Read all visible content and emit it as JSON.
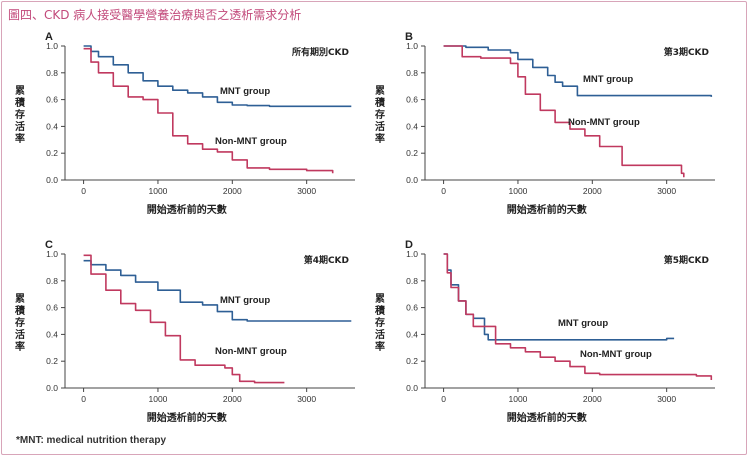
{
  "figure": {
    "title": "圖四、CKD 病人接受醫學營養治療與否之透析需求分析",
    "footnote": "*MNT: medical nutrition therapy"
  },
  "colors": {
    "mnt": "#2e5f95",
    "non_mnt": "#c0395f",
    "axis": "#444444",
    "title": "#c2497a"
  },
  "chart_data": [
    {
      "type": "line",
      "panel": "A",
      "corner_label": "所有期別CKD",
      "xlabel": "開始透析前的天數",
      "ylabel": "累積存活率",
      "xlim": [
        -250,
        3650
      ],
      "ylim": [
        0,
        1
      ],
      "xticks": [
        0,
        1000,
        2000,
        3000
      ],
      "yticks": [
        0.0,
        0.2,
        0.4,
        0.6,
        0.8,
        1.0
      ],
      "series": [
        {
          "name": "MNT group",
          "color": "#2e5f95",
          "x": [
            0,
            100,
            200,
            400,
            600,
            800,
            1000,
            1200,
            1400,
            1600,
            1800,
            2000,
            2200,
            2500,
            3000,
            3600
          ],
          "y": [
            1.0,
            0.96,
            0.92,
            0.86,
            0.8,
            0.74,
            0.7,
            0.67,
            0.65,
            0.62,
            0.58,
            0.56,
            0.555,
            0.55,
            0.55,
            0.55
          ]
        },
        {
          "name": "Non-MNT group",
          "color": "#c0395f",
          "x": [
            0,
            100,
            200,
            400,
            600,
            800,
            1000,
            1200,
            1400,
            1600,
            1800,
            2000,
            2200,
            2500,
            3000,
            3350
          ],
          "y": [
            0.98,
            0.88,
            0.8,
            0.7,
            0.62,
            0.6,
            0.5,
            0.33,
            0.27,
            0.23,
            0.21,
            0.15,
            0.09,
            0.08,
            0.07,
            0.05
          ]
        }
      ]
    },
    {
      "type": "line",
      "panel": "B",
      "corner_label": "第3期CKD",
      "xlabel": "開始透析前的天數",
      "ylabel": "累積存活率",
      "xlim": [
        -250,
        3650
      ],
      "ylim": [
        0,
        1
      ],
      "xticks": [
        0,
        1000,
        2000,
        3000
      ],
      "yticks": [
        0.0,
        0.2,
        0.4,
        0.6,
        0.8,
        1.0
      ],
      "series": [
        {
          "name": "MNT group",
          "color": "#2e5f95",
          "x": [
            0,
            300,
            600,
            900,
            1000,
            1200,
            1400,
            1500,
            1600,
            1800,
            2000,
            2500,
            3000,
            3600
          ],
          "y": [
            1.0,
            0.99,
            0.97,
            0.95,
            0.9,
            0.84,
            0.78,
            0.73,
            0.7,
            0.63,
            0.63,
            0.63,
            0.63,
            0.62
          ]
        },
        {
          "name": "Non-MNT group",
          "color": "#c0395f",
          "x": [
            0,
            250,
            500,
            900,
            1000,
            1100,
            1300,
            1500,
            1700,
            1900,
            2100,
            2400,
            3000,
            3200,
            3230
          ],
          "y": [
            1.0,
            0.92,
            0.91,
            0.87,
            0.77,
            0.64,
            0.52,
            0.43,
            0.38,
            0.33,
            0.25,
            0.11,
            0.11,
            0.05,
            0.02
          ]
        }
      ]
    },
    {
      "type": "line",
      "panel": "C",
      "corner_label": "第4期CKD",
      "xlabel": "開始透析前的天數",
      "ylabel": "累積存活率",
      "xlim": [
        -250,
        3650
      ],
      "ylim": [
        0,
        1
      ],
      "xticks": [
        0,
        1000,
        2000,
        3000
      ],
      "yticks": [
        0.0,
        0.2,
        0.4,
        0.6,
        0.8,
        1.0
      ],
      "series": [
        {
          "name": "MNT group",
          "color": "#2e5f95",
          "x": [
            0,
            100,
            300,
            500,
            700,
            1000,
            1300,
            1600,
            1800,
            2000,
            2200,
            2600,
            3000,
            3600
          ],
          "y": [
            0.95,
            0.92,
            0.88,
            0.84,
            0.79,
            0.73,
            0.64,
            0.62,
            0.57,
            0.51,
            0.5,
            0.5,
            0.5,
            0.5
          ]
        },
        {
          "name": "Non-MNT group",
          "color": "#c0395f",
          "x": [
            0,
            100,
            300,
            500,
            700,
            900,
            1100,
            1300,
            1500,
            1700,
            1900,
            2000,
            2100,
            2300,
            2700
          ],
          "y": [
            0.99,
            0.85,
            0.73,
            0.63,
            0.58,
            0.49,
            0.39,
            0.21,
            0.17,
            0.17,
            0.15,
            0.1,
            0.05,
            0.04,
            0.04
          ]
        }
      ]
    },
    {
      "type": "line",
      "panel": "D",
      "corner_label": "第5期CKD",
      "xlabel": "開始透析前的天數",
      "ylabel": "累積存活率",
      "xlim": [
        -250,
        3650
      ],
      "ylim": [
        0,
        1
      ],
      "xticks": [
        0,
        1000,
        2000,
        3000
      ],
      "yticks": [
        0.0,
        0.2,
        0.4,
        0.6,
        0.8,
        1.0
      ],
      "series": [
        {
          "name": "MNT group",
          "color": "#2e5f95",
          "x": [
            0,
            50,
            100,
            200,
            300,
            400,
            500,
            550,
            600,
            800,
            1000,
            2000,
            3000,
            3100
          ],
          "y": [
            1.0,
            0.88,
            0.77,
            0.65,
            0.55,
            0.52,
            0.52,
            0.4,
            0.36,
            0.36,
            0.36,
            0.36,
            0.37,
            0.37
          ]
        },
        {
          "name": "Non-MNT group",
          "color": "#c0395f",
          "x": [
            0,
            50,
            100,
            200,
            300,
            400,
            500,
            700,
            900,
            1100,
            1300,
            1500,
            1700,
            1900,
            2100,
            2500,
            3000,
            3400,
            3600
          ],
          "y": [
            1.0,
            0.86,
            0.75,
            0.65,
            0.55,
            0.46,
            0.46,
            0.33,
            0.3,
            0.27,
            0.23,
            0.2,
            0.16,
            0.11,
            0.1,
            0.1,
            0.1,
            0.09,
            0.06
          ]
        }
      ]
    }
  ]
}
